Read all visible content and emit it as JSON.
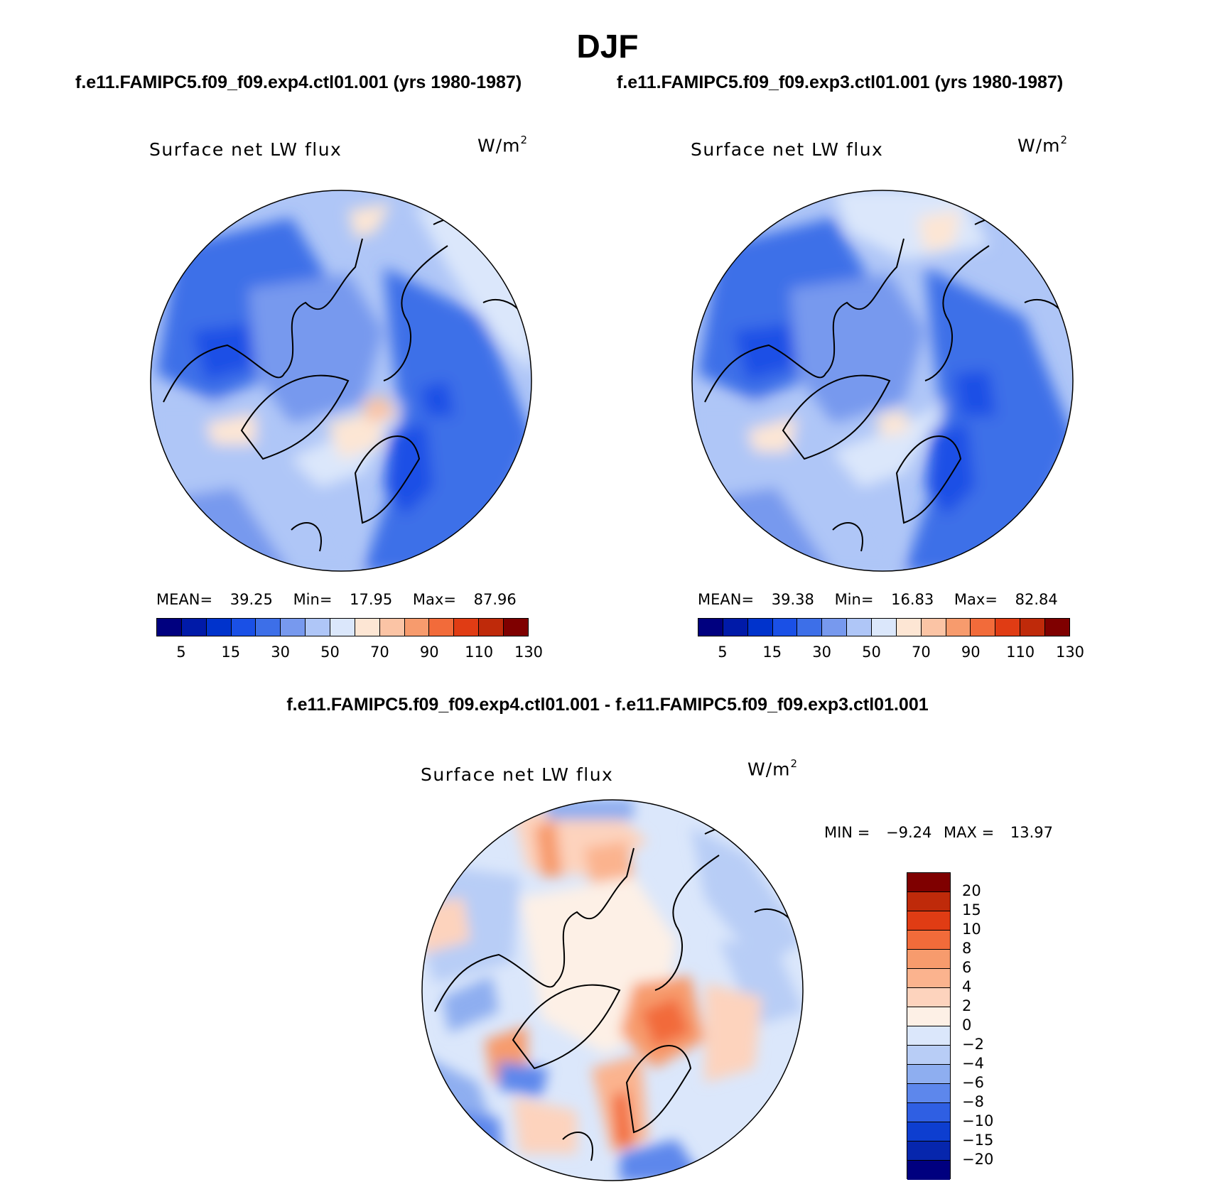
{
  "title": "DJF",
  "cases": {
    "left": "f.e11.FAMIPC5.f09_f09.exp4.ctl01.001 (yrs 1980-1987)",
    "right": "f.e11.FAMIPC5.f09_f09.exp3.ctl01.001 (yrs 1980-1987)"
  },
  "diff_title": "f.e11.FAMIPC5.f09_f09.exp4.ctl01.001 - f.e11.FAMIPC5.f09_f09.exp3.ctl01.001",
  "panels": [
    {
      "label": "Surface net LW flux",
      "units": "W/m",
      "units_exp": "2",
      "mean_label": "MEAN=",
      "mean": "39.25",
      "min_label": "Min=",
      "min": "17.95",
      "max_label": "Max=",
      "max": "87.96"
    },
    {
      "label": "Surface net LW flux",
      "units": "W/m",
      "units_exp": "2",
      "mean_label": "MEAN=",
      "mean": "39.38",
      "min_label": "Min=",
      "min": "16.83",
      "max_label": "Max=",
      "max": "82.84"
    }
  ],
  "diff_panel": {
    "label": "Surface net LW flux",
    "units": "W/m",
    "units_exp": "2",
    "min_label": "MIN =",
    "min": "−9.24",
    "max_label": "MAX =",
    "max": "13.97"
  },
  "abs_colorbar": {
    "colors": [
      "#00007f",
      "#001aa8",
      "#0033cc",
      "#1a50e6",
      "#3d6fe8",
      "#7799ee",
      "#afc6f7",
      "#dbe7fb",
      "#fde6d4",
      "#fbc4a5",
      "#f79b6d",
      "#f26b3a",
      "#e03c14",
      "#bf2a0a",
      "#7f0000"
    ],
    "labels": [
      "5",
      "15",
      "30",
      "50",
      "70",
      "90",
      "110",
      "130"
    ]
  },
  "diff_colorbar": {
    "colors": [
      "#7f0000",
      "#bf2a0a",
      "#e03c14",
      "#f26b3a",
      "#f79b6d",
      "#fbb38e",
      "#fdd3bd",
      "#fdf0e6",
      "#dbe7fb",
      "#b8cdf6",
      "#8eaef0",
      "#5d87ec",
      "#2f5fe3",
      "#0d3ed0",
      "#0626ad",
      "#00007f"
    ],
    "labels": [
      "20",
      "15",
      "10",
      "8",
      "6",
      "4",
      "2",
      "0",
      "−2",
      "−4",
      "−6",
      "−8",
      "−10",
      "−15",
      "−20"
    ]
  }
}
